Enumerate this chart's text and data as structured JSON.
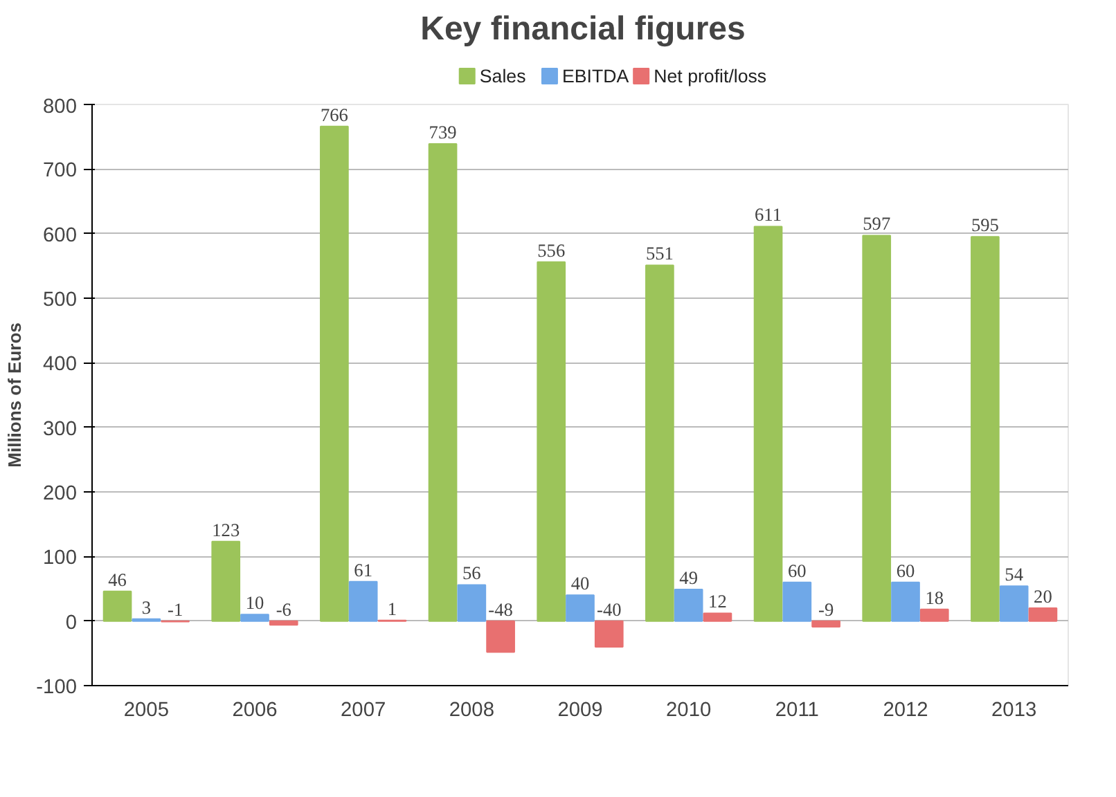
{
  "chart_data": {
    "type": "bar",
    "title": "Key financial figures",
    "ylabel": "Millions of Euros",
    "categories": [
      "2005",
      "2006",
      "2007",
      "2008",
      "2009",
      "2010",
      "2011",
      "2012",
      "2013"
    ],
    "series": [
      {
        "name": "Sales",
        "color": "#9cc45a",
        "values": [
          46,
          123,
          766,
          739,
          556,
          551,
          611,
          597,
          595
        ]
      },
      {
        "name": "EBITDA",
        "color": "#6fa8e8",
        "values": [
          3,
          10,
          61,
          56,
          40,
          49,
          60,
          60,
          54
        ]
      },
      {
        "name": "Net profit/loss",
        "color": "#e87070",
        "values": [
          -1,
          -6,
          1,
          -48,
          -40,
          12,
          -9,
          18,
          20
        ]
      }
    ],
    "ylim": [
      -100,
      800
    ],
    "yticks": [
      -100,
      0,
      100,
      200,
      300,
      400,
      500,
      600,
      700,
      800
    ],
    "grid": "y",
    "legend": "top",
    "data_labels": true
  }
}
